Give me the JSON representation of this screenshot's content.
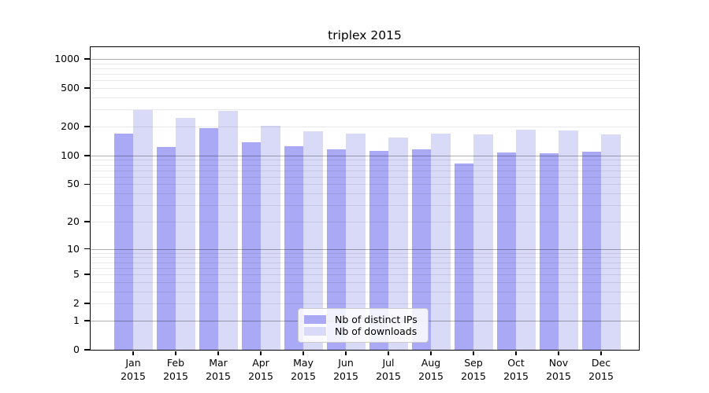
{
  "title": "triplex 2015",
  "colors": {
    "distinct_ips": "#a9a9f5",
    "downloads": "#d9d9f8",
    "grid_major": "#b0b0b0",
    "grid_minor": "#e9e9e9",
    "axis_line": "#000000",
    "tick_text": "#000000",
    "legend_bg": "rgba(255,255,255,0.85)",
    "legend_border": "#cccccc"
  },
  "chart_data": {
    "type": "bar",
    "title": "triplex 2015",
    "categories": [
      "Jan 2015",
      "Feb 2015",
      "Mar 2015",
      "Apr 2015",
      "May 2015",
      "Jun 2015",
      "Jul 2015",
      "Aug 2015",
      "Sep 2015",
      "Oct 2015",
      "Nov 2015",
      "Dec 2015"
    ],
    "series": [
      {
        "name": "Nb of distinct IPs",
        "color": "#a9a9f5",
        "values": [
          168,
          122,
          192,
          138,
          125,
          115,
          111,
          115,
          83,
          108,
          106,
          110
        ]
      },
      {
        "name": "Nb of downloads",
        "color": "#d9d9f8",
        "values": [
          296,
          244,
          293,
          204,
          179,
          169,
          155,
          170,
          165,
          186,
          181,
          166
        ]
      }
    ],
    "xlabel": "",
    "ylabel": "",
    "yscale": "log1p",
    "yticks": [
      0,
      1,
      2,
      5,
      10,
      20,
      50,
      100,
      200,
      500,
      1000
    ],
    "ylim": [
      0,
      1325
    ],
    "grid": "on",
    "legend_position": "lower center"
  }
}
